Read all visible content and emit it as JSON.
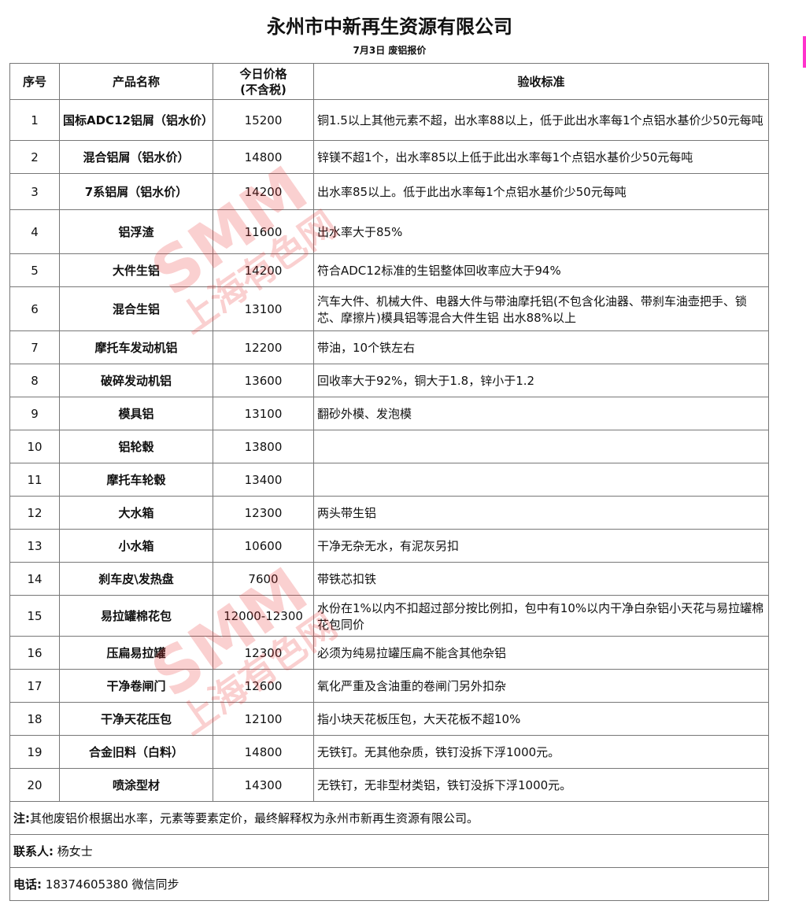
{
  "title": "永州市中新再生资源有限公司",
  "subtitle": "7月3日 废铝报价",
  "headers": {
    "no": "序号",
    "name": "产品名称",
    "price": "今日价格\n(不含税)",
    "standard": "验收标准"
  },
  "rows": [
    {
      "no": "1",
      "name": "国标ADC12铝屑（铝水价）",
      "price": "15200",
      "standard": "铜1.5以上其他元素不超，出水率88以上，低于此出水率每1个点铝水基价少50元每吨"
    },
    {
      "no": "2",
      "name": "混合铝屑（铝水价）",
      "price": "14800",
      "standard": "锌镁不超1个，出水率85以上低于此出水率每1个点铝水基价少50元每吨"
    },
    {
      "no": "3",
      "name": "7系铝屑（铝水价）",
      "price": "14200",
      "standard": "出水率85以上。低于此出水率每1个点铝水基价少50元每吨"
    },
    {
      "no": "4",
      "name": "铝浮渣",
      "price": "11600",
      "standard": "出水率大于85%"
    },
    {
      "no": "5",
      "name": "大件生铝",
      "price": "14200",
      "standard": "符合ADC12标准的生铝整体回收率应大于94%"
    },
    {
      "no": "6",
      "name": "混合生铝",
      "price": "13100",
      "standard": "汽车大件、机械大件、电器大件与带油摩托铝(不包含化油器、带刹车油壶把手、锁芯、摩擦片)模具铝等混合大件生铝 出水88%以上"
    },
    {
      "no": "7",
      "name": "摩托车发动机铝",
      "price": "12200",
      "standard": "带油，10个铁左右"
    },
    {
      "no": "8",
      "name": "破碎发动机铝",
      "price": "13600",
      "standard": "回收率大于92%，铜大于1.8，锌小于1.2"
    },
    {
      "no": "9",
      "name": "模具铝",
      "price": "13100",
      "standard": "翻砂外模、发泡模"
    },
    {
      "no": "10",
      "name": "铝轮毂",
      "price": "13800",
      "standard": ""
    },
    {
      "no": "11",
      "name": "摩托车轮毂",
      "price": "13400",
      "standard": ""
    },
    {
      "no": "12",
      "name": "大水箱",
      "price": "12300",
      "standard": "两头带生铝"
    },
    {
      "no": "13",
      "name": "小水箱",
      "price": "10600",
      "standard": "干净无杂无水，有泥灰另扣"
    },
    {
      "no": "14",
      "name": "刹车皮\\发热盘",
      "price": "7600",
      "standard": "带铁芯扣铁"
    },
    {
      "no": "15",
      "name": "易拉罐棉花包",
      "price": "12000-12300",
      "standard": "水份在1%以内不扣超过部分按比例扣，包中有10%以内干净白杂铝小天花与易拉罐棉花包同价"
    },
    {
      "no": "16",
      "name": "压扁易拉罐",
      "price": "12300",
      "standard": "必须为纯易拉罐压扁不能含其他杂铝"
    },
    {
      "no": "17",
      "name": "干净卷闸门",
      "price": "12600",
      "standard": "氧化严重及含油重的卷闸门另外扣杂"
    },
    {
      "no": "18",
      "name": "干净天花压包",
      "price": "12100",
      "standard": "指小块天花板压包，大天花板不超10%"
    },
    {
      "no": "19",
      "name": "合金旧料（白料）",
      "price": "14800",
      "standard": "无铁钉。无其他杂质，铁钉没拆下浮1000元。"
    },
    {
      "no": "20",
      "name": "喷涂型材",
      "price": "14300",
      "standard": "无铁钉，无非型材类铝，铁钉没拆下浮1000元。"
    }
  ],
  "note": {
    "label": "注:",
    "text": "其他废铝价根据出水率，元素等要素定价，最终解释权为永州市新再生资源有限公司。"
  },
  "contact": {
    "label": "联系人:",
    "text": "杨女士"
  },
  "phone": {
    "label": "电话:",
    "text": "18374605380 微信同步"
  },
  "watermark": {
    "brand": "SMM",
    "name": "上海有色网",
    "color": "#e62828"
  }
}
